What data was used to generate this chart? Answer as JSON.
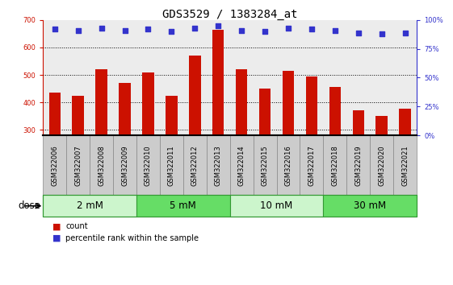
{
  "title": "GDS3529 / 1383284_at",
  "samples": [
    "GSM322006",
    "GSM322007",
    "GSM322008",
    "GSM322009",
    "GSM322010",
    "GSM322011",
    "GSM322012",
    "GSM322013",
    "GSM322014",
    "GSM322015",
    "GSM322016",
    "GSM322017",
    "GSM322018",
    "GSM322019",
    "GSM322020",
    "GSM322021"
  ],
  "counts": [
    435,
    425,
    520,
    470,
    510,
    425,
    570,
    665,
    520,
    450,
    515,
    495,
    455,
    370,
    350,
    378
  ],
  "percentiles": [
    92,
    91,
    93,
    91,
    92,
    90,
    93,
    95,
    91,
    90,
    93,
    92,
    91,
    89,
    88,
    89
  ],
  "ylim_left": [
    280,
    700
  ],
  "ylim_right": [
    0,
    100
  ],
  "yticks_left": [
    300,
    400,
    500,
    600,
    700
  ],
  "yticks_right": [
    0,
    25,
    50,
    75,
    100
  ],
  "bar_color": "#cc1100",
  "dot_color": "#3333cc",
  "bg_plot": "#ececec",
  "bg_sample_cell": "#cccccc",
  "dose_groups": [
    {
      "label": "2 mM",
      "start": 0,
      "end": 4,
      "color": "#ccf5cc"
    },
    {
      "label": "5 mM",
      "start": 4,
      "end": 8,
      "color": "#66dd66"
    },
    {
      "label": "10 mM",
      "start": 8,
      "end": 12,
      "color": "#ccf5cc"
    },
    {
      "label": "30 mM",
      "start": 12,
      "end": 16,
      "color": "#66dd66"
    }
  ],
  "legend_count_label": "count",
  "legend_pct_label": "percentile rank within the sample",
  "dose_label": "dose",
  "title_fontsize": 10,
  "tick_fontsize": 6,
  "sample_fontsize": 6,
  "dose_fontsize": 8.5
}
